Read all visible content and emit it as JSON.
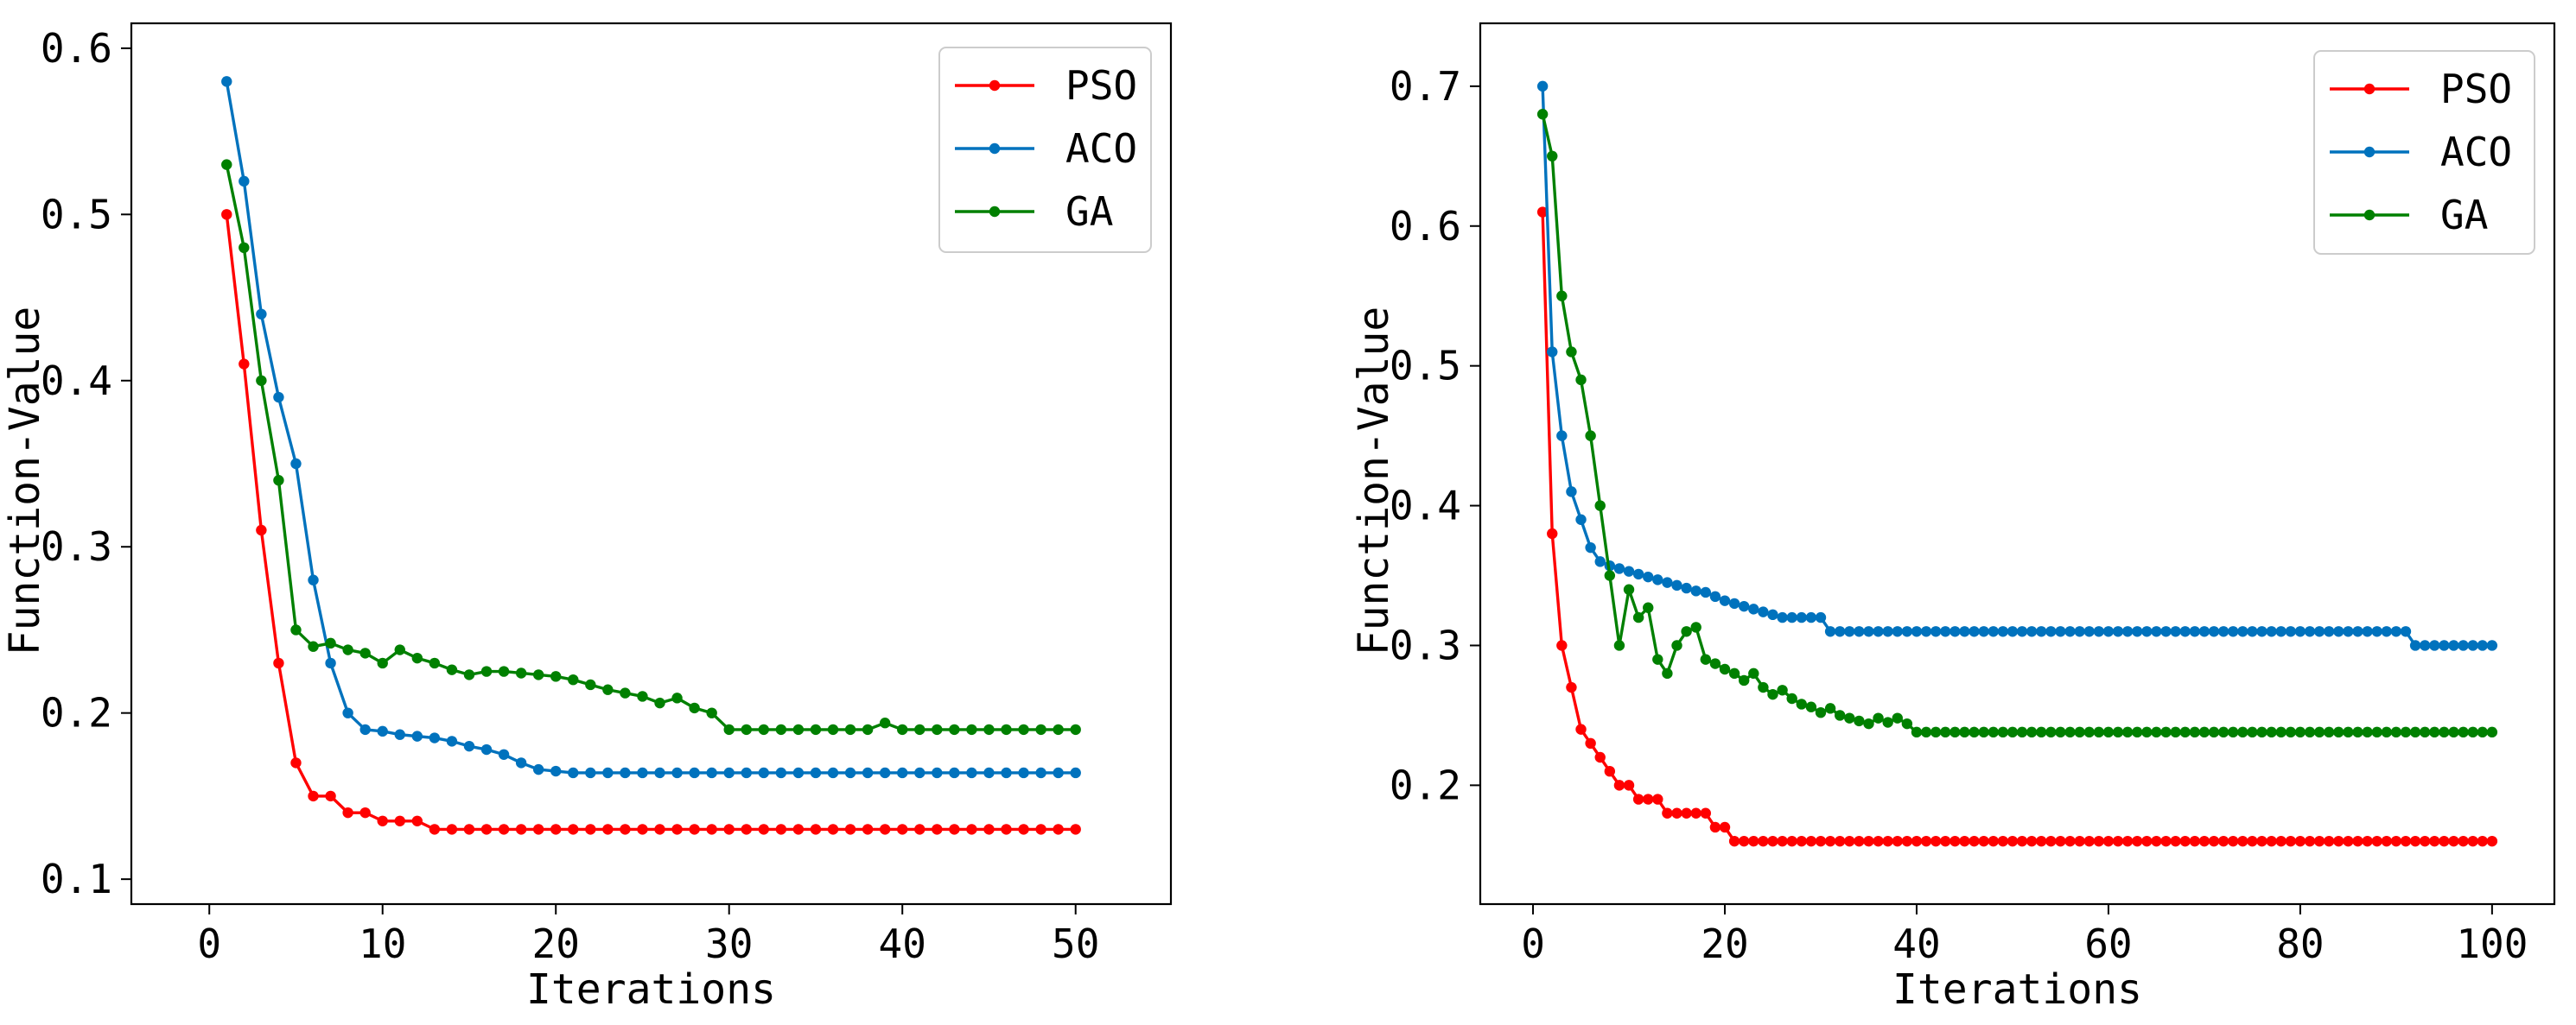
{
  "chart_data": [
    {
      "type": "line",
      "xlabel": "Iterations",
      "ylabel": "Function-Value",
      "xlim": [
        -4.5,
        55.5
      ],
      "ylim": [
        0.085,
        0.615
      ],
      "xticks": [
        0,
        10,
        20,
        30,
        40,
        50
      ],
      "yticks": [
        0.1,
        0.2,
        0.3,
        0.4,
        0.5,
        0.6
      ],
      "ytick_labels": [
        "0.1",
        "0.2",
        "0.3",
        "0.4",
        "0.5",
        "0.6"
      ],
      "legend_position": "top-right",
      "x": [
        1,
        2,
        3,
        4,
        5,
        6,
        7,
        8,
        9,
        10,
        11,
        12,
        13,
        14,
        15,
        16,
        17,
        18,
        19,
        20,
        21,
        22,
        23,
        24,
        25,
        26,
        27,
        28,
        29,
        30,
        31,
        32,
        33,
        34,
        35,
        36,
        37,
        38,
        39,
        40,
        41,
        42,
        43,
        44,
        45,
        46,
        47,
        48,
        49,
        50
      ],
      "series": [
        {
          "name": "PSO",
          "color": "#ff0000",
          "values": [
            0.5,
            0.41,
            0.31,
            0.23,
            0.17,
            0.15,
            0.15,
            0.14,
            0.14,
            0.135,
            0.135,
            0.135,
            0.13,
            0.13,
            0.13,
            0.13,
            0.13,
            0.13,
            0.13,
            0.13,
            0.13,
            0.13,
            0.13,
            0.13,
            0.13,
            0.13,
            0.13,
            0.13,
            0.13,
            0.13,
            0.13,
            0.13,
            0.13,
            0.13,
            0.13,
            0.13,
            0.13,
            0.13,
            0.13,
            0.13,
            0.13,
            0.13,
            0.13,
            0.13,
            0.13,
            0.13,
            0.13,
            0.13,
            0.13,
            0.13
          ]
        },
        {
          "name": "ACO",
          "color": "#0072bd",
          "values": [
            0.58,
            0.52,
            0.44,
            0.39,
            0.35,
            0.28,
            0.23,
            0.2,
            0.19,
            0.189,
            0.187,
            0.186,
            0.185,
            0.183,
            0.18,
            0.178,
            0.175,
            0.17,
            0.166,
            0.165,
            0.164,
            0.164,
            0.164,
            0.164,
            0.164,
            0.164,
            0.164,
            0.164,
            0.164,
            0.164,
            0.164,
            0.164,
            0.164,
            0.164,
            0.164,
            0.164,
            0.164,
            0.164,
            0.164,
            0.164,
            0.164,
            0.164,
            0.164,
            0.164,
            0.164,
            0.164,
            0.164,
            0.164,
            0.164,
            0.164
          ]
        },
        {
          "name": "GA",
          "color": "#008000",
          "values": [
            0.53,
            0.48,
            0.4,
            0.34,
            0.25,
            0.24,
            0.242,
            0.238,
            0.236,
            0.23,
            0.238,
            0.233,
            0.23,
            0.226,
            0.223,
            0.225,
            0.225,
            0.224,
            0.223,
            0.222,
            0.22,
            0.217,
            0.214,
            0.212,
            0.21,
            0.206,
            0.209,
            0.203,
            0.2,
            0.19,
            0.19,
            0.19,
            0.19,
            0.19,
            0.19,
            0.19,
            0.19,
            0.19,
            0.194,
            0.19,
            0.19,
            0.19,
            0.19,
            0.19,
            0.19,
            0.19,
            0.19,
            0.19,
            0.19,
            0.19
          ]
        }
      ]
    },
    {
      "type": "line",
      "xlabel": "Iterations",
      "ylabel": "Function-Value",
      "xlim": [
        -5.5,
        106.5
      ],
      "ylim": [
        0.115,
        0.745
      ],
      "xticks": [
        0,
        20,
        40,
        60,
        80,
        100
      ],
      "yticks": [
        0.2,
        0.3,
        0.4,
        0.5,
        0.6,
        0.7
      ],
      "ytick_labels": [
        "0.2",
        "0.3",
        "0.4",
        "0.5",
        "0.6",
        "0.7"
      ],
      "legend_position": "top-right",
      "n_points": 100,
      "series": [
        {
          "name": "PSO",
          "color": "#ff0000",
          "values": [
            0.61,
            0.38,
            0.3,
            0.27,
            0.24,
            0.23,
            0.22,
            0.21,
            0.2,
            0.2,
            0.19,
            0.19,
            0.19,
            0.18,
            0.18,
            0.18,
            0.18,
            0.18,
            0.17,
            0.17,
            0.16,
            0.16,
            0.16,
            0.16,
            0.16,
            0.16,
            0.16,
            0.16,
            0.16,
            0.16,
            0.16,
            0.16,
            0.16,
            0.16,
            0.16,
            0.16,
            0.16,
            0.16,
            0.16,
            0.16,
            0.16,
            0.16,
            0.16,
            0.16,
            0.16,
            0.16,
            0.16,
            0.16,
            0.16,
            0.16,
            0.16,
            0.16,
            0.16,
            0.16,
            0.16,
            0.16,
            0.16,
            0.16,
            0.16,
            0.16,
            0.16,
            0.16,
            0.16,
            0.16,
            0.16,
            0.16,
            0.16,
            0.16,
            0.16,
            0.16,
            0.16,
            0.16,
            0.16,
            0.16,
            0.16,
            0.16,
            0.16,
            0.16,
            0.16,
            0.16,
            0.16,
            0.16,
            0.16,
            0.16,
            0.16,
            0.16,
            0.16,
            0.16,
            0.16,
            0.16,
            0.16,
            0.16,
            0.16,
            0.16,
            0.16,
            0.16,
            0.16,
            0.16,
            0.16,
            0.16
          ]
        },
        {
          "name": "ACO",
          "color": "#0072bd",
          "values": [
            0.7,
            0.51,
            0.45,
            0.41,
            0.39,
            0.37,
            0.36,
            0.357,
            0.355,
            0.353,
            0.351,
            0.349,
            0.347,
            0.345,
            0.343,
            0.341,
            0.339,
            0.338,
            0.335,
            0.332,
            0.33,
            0.328,
            0.326,
            0.324,
            0.322,
            0.32,
            0.32,
            0.32,
            0.32,
            0.32,
            0.31,
            0.31,
            0.31,
            0.31,
            0.31,
            0.31,
            0.31,
            0.31,
            0.31,
            0.31,
            0.31,
            0.31,
            0.31,
            0.31,
            0.31,
            0.31,
            0.31,
            0.31,
            0.31,
            0.31,
            0.31,
            0.31,
            0.31,
            0.31,
            0.31,
            0.31,
            0.31,
            0.31,
            0.31,
            0.31,
            0.31,
            0.31,
            0.31,
            0.31,
            0.31,
            0.31,
            0.31,
            0.31,
            0.31,
            0.31,
            0.31,
            0.31,
            0.31,
            0.31,
            0.31,
            0.31,
            0.31,
            0.31,
            0.31,
            0.31,
            0.31,
            0.31,
            0.31,
            0.31,
            0.31,
            0.31,
            0.31,
            0.31,
            0.31,
            0.31,
            0.31,
            0.3,
            0.3,
            0.3,
            0.3,
            0.3,
            0.3,
            0.3,
            0.3,
            0.3
          ]
        },
        {
          "name": "GA",
          "color": "#008000",
          "values": [
            0.68,
            0.65,
            0.55,
            0.51,
            0.49,
            0.45,
            0.4,
            0.35,
            0.3,
            0.34,
            0.32,
            0.327,
            0.29,
            0.28,
            0.3,
            0.31,
            0.313,
            0.29,
            0.287,
            0.283,
            0.28,
            0.275,
            0.28,
            0.27,
            0.265,
            0.268,
            0.262,
            0.258,
            0.256,
            0.252,
            0.255,
            0.25,
            0.248,
            0.246,
            0.244,
            0.248,
            0.245,
            0.248,
            0.244,
            0.238,
            0.238,
            0.238,
            0.238,
            0.238,
            0.238,
            0.238,
            0.238,
            0.238,
            0.238,
            0.238,
            0.238,
            0.238,
            0.238,
            0.238,
            0.238,
            0.238,
            0.238,
            0.238,
            0.238,
            0.238,
            0.238,
            0.238,
            0.238,
            0.238,
            0.238,
            0.238,
            0.238,
            0.238,
            0.238,
            0.238,
            0.238,
            0.238,
            0.238,
            0.238,
            0.238,
            0.238,
            0.238,
            0.238,
            0.238,
            0.238,
            0.238,
            0.238,
            0.238,
            0.238,
            0.238,
            0.238,
            0.238,
            0.238,
            0.238,
            0.238,
            0.238,
            0.238,
            0.238,
            0.238,
            0.238,
            0.238,
            0.238,
            0.238,
            0.238,
            0.238
          ]
        }
      ]
    }
  ]
}
